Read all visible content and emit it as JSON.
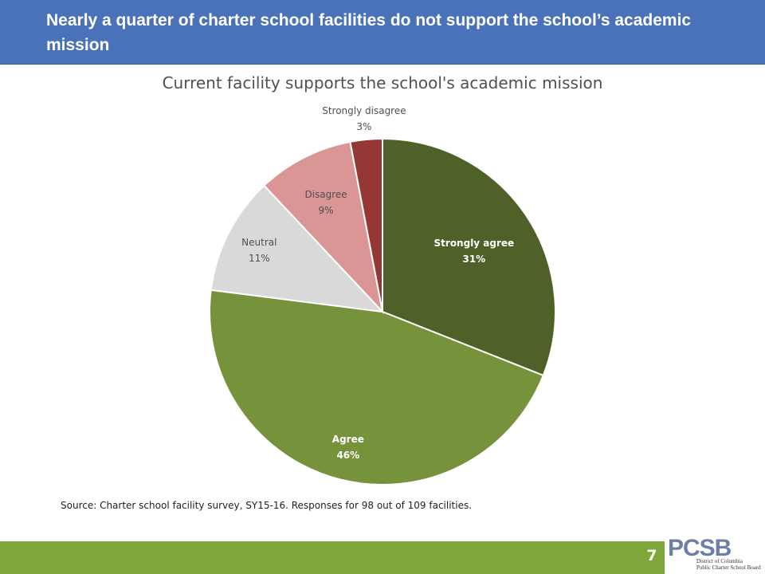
{
  "slide": {
    "title": "Nearly a quarter of charter school facilities do not support the school’s academic mission",
    "source": "Source: Charter school facility survey, SY15-16. Responses for 98 out of 109 facilities.",
    "page_number": "7"
  },
  "logo": {
    "letters": "PCSB",
    "line1": "District of Columbia",
    "line2": "Public Charter School Board"
  },
  "colors": {
    "title_bar": "#4a72b8",
    "footer_bar": "#7ea63a"
  },
  "chart_data": {
    "type": "pie",
    "title": "Current facility supports the school's academic mission",
    "slices": [
      {
        "name": "Strongly agree",
        "value": 31,
        "label": "31%",
        "color": "#4e6128"
      },
      {
        "name": "Agree",
        "value": 46,
        "label": "46%",
        "color": "#76933c"
      },
      {
        "name": "Neutral",
        "value": 11,
        "label": "11%",
        "color": "#d9d9d9"
      },
      {
        "name": "Disagree",
        "value": 9,
        "label": "9%",
        "color": "#da9694"
      },
      {
        "name": "Strongly disagree",
        "value": 3,
        "label": "3%",
        "color": "#953735"
      }
    ]
  }
}
